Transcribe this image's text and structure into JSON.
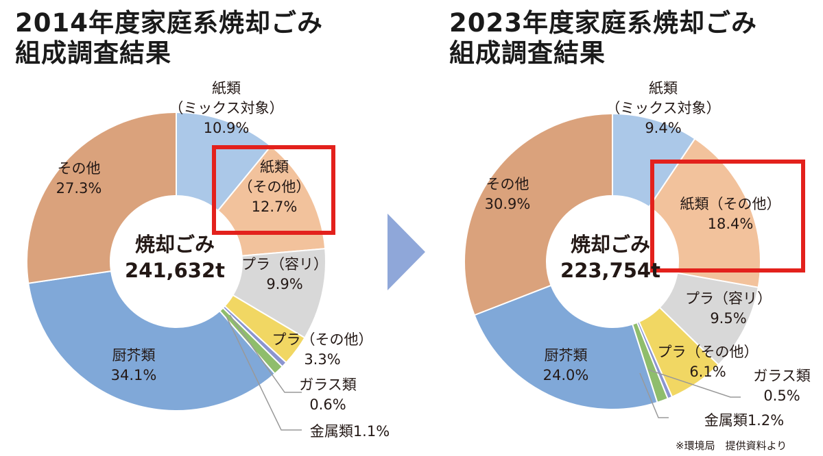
{
  "chart_data": [
    {
      "type": "pie",
      "donut": true,
      "title": "2014年度家庭系焼却ごみ組成調査結果",
      "title_lines": [
        "2014年度家庭系焼却ごみ",
        "組成調査結果"
      ],
      "center_label": "焼却ごみ",
      "center_value": "241,632t",
      "unit": "%",
      "slices": [
        {
          "name": "紙類（ミックス対象）",
          "label_lines": [
            "紙類",
            "（ミックス対象）",
            "10.9%"
          ],
          "value": 10.9,
          "color": "#abc8e8",
          "highlighted": false
        },
        {
          "name": "紙類（その他）",
          "label_lines": [
            "紙類",
            "（その他）",
            "12.7%"
          ],
          "value": 12.7,
          "color": "#f2c29c",
          "highlighted": true
        },
        {
          "name": "プラ（容リ）",
          "label_lines": [
            "プラ（容リ）",
            "9.9%"
          ],
          "value": 9.9,
          "color": "#d8d8d8",
          "highlighted": false
        },
        {
          "name": "プラ（その他）",
          "label_lines": [
            "プラ（その他）",
            "3.3%"
          ],
          "value": 3.3,
          "color": "#f1d763",
          "highlighted": false
        },
        {
          "name": "ガラス類",
          "label_lines": [
            "ガラス類",
            "0.6%"
          ],
          "value": 0.6,
          "color": "#8b95d0",
          "highlighted": false
        },
        {
          "name": "金属類",
          "label_lines": [
            "金属類1.1%"
          ],
          "value": 1.1,
          "color": "#8fbd6c",
          "highlighted": false
        },
        {
          "name": "厨芥類",
          "label_lines": [
            "厨芥類",
            "34.1%"
          ],
          "value": 34.1,
          "color": "#80a8d8",
          "highlighted": false
        },
        {
          "name": "その他",
          "label_lines": [
            "その他",
            "27.3%"
          ],
          "value": 27.3,
          "color": "#daa27c",
          "highlighted": false
        }
      ]
    },
    {
      "type": "pie",
      "donut": true,
      "title": "2023年度家庭系焼却ごみ組成調査結果",
      "title_lines": [
        "2023年度家庭系焼却ごみ",
        "組成調査結果"
      ],
      "center_label": "焼却ごみ",
      "center_value": "223,754t",
      "unit": "%",
      "slices": [
        {
          "name": "紙類（ミックス対象）",
          "label_lines": [
            "紙類",
            "（ミックス対象）",
            "9.4%"
          ],
          "value": 9.4,
          "color": "#abc8e8",
          "highlighted": false
        },
        {
          "name": "紙類（その他）",
          "label_lines": [
            "紙類（その他）",
            "18.4%"
          ],
          "value": 18.4,
          "color": "#f2c29c",
          "highlighted": true
        },
        {
          "name": "プラ（容リ）",
          "label_lines": [
            "プラ（容リ）",
            "9.5%"
          ],
          "value": 9.5,
          "color": "#d8d8d8",
          "highlighted": false
        },
        {
          "name": "プラ（その他）",
          "label_lines": [
            "プラ（その他）",
            "6.1%"
          ],
          "value": 6.1,
          "color": "#f1d763",
          "highlighted": false
        },
        {
          "name": "ガラス類",
          "label_lines": [
            "ガラス類",
            "0.5%"
          ],
          "value": 0.5,
          "color": "#8b95d0",
          "highlighted": false
        },
        {
          "name": "金属類",
          "label_lines": [
            "金属類1.2%"
          ],
          "value": 1.2,
          "color": "#8fbd6c",
          "highlighted": false
        },
        {
          "name": "厨芥類",
          "label_lines": [
            "厨芥類",
            "24.0%"
          ],
          "value": 24.0,
          "color": "#80a8d8",
          "highlighted": false
        },
        {
          "name": "その他",
          "label_lines": [
            "その他",
            "30.9%"
          ],
          "value": 30.9,
          "color": "#daa27c",
          "highlighted": false
        }
      ]
    }
  ],
  "arrow_color": "#8fa7d9",
  "highlight_color": "#e3211c",
  "source_note": "※環境局　提供資料より"
}
